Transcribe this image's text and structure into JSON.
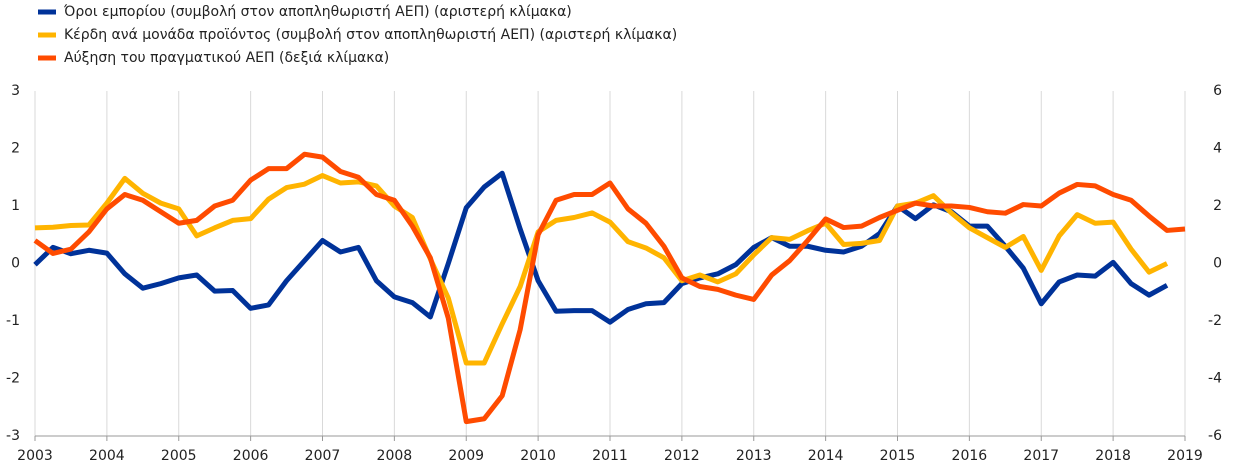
{
  "chart_data": {
    "type": "line",
    "x": [
      2003,
      2003.25,
      2003.5,
      2003.75,
      2004,
      2004.25,
      2004.5,
      2004.75,
      2005,
      2005.25,
      2005.5,
      2005.75,
      2006,
      2006.25,
      2006.5,
      2006.75,
      2007,
      2007.25,
      2007.5,
      2007.75,
      2008,
      2008.25,
      2008.5,
      2008.75,
      2009,
      2009.25,
      2009.5,
      2009.75,
      2010,
      2010.25,
      2010.5,
      2010.75,
      2011,
      2011.25,
      2011.5,
      2011.75,
      2012,
      2012.25,
      2012.5,
      2012.75,
      2013,
      2013.25,
      2013.5,
      2013.75,
      2014,
      2014.25,
      2014.5,
      2014.75,
      2015,
      2015.25,
      2015.5,
      2015.75,
      2016,
      2016.25,
      2016.5,
      2016.75,
      2017,
      2017.25,
      2017.5,
      2017.75,
      2018,
      2018.25,
      2018.5,
      2018.75,
      2019
    ],
    "series": [
      {
        "name": "Όροι εμπορίου (συμβολή στον αποπληθωριστή ΑΕΠ) (αριστερή κλίμακα)",
        "color": "#003299",
        "values": [
          -0.02,
          0.28,
          0.17,
          0.23,
          0.18,
          -0.18,
          -0.43,
          -0.35,
          -0.25,
          -0.2,
          -0.48,
          -0.47,
          -0.78,
          -0.72,
          -0.3,
          0.05,
          0.4,
          0.2,
          0.28,
          -0.3,
          -0.58,
          -0.68,
          -0.93,
          0.0,
          0.97,
          1.33,
          1.57,
          0.6,
          -0.3,
          -0.83,
          -0.82,
          -0.82,
          -1.02,
          -0.8,
          -0.7,
          -0.68,
          -0.35,
          -0.25,
          -0.18,
          -0.02,
          0.28,
          0.45,
          0.3,
          0.3,
          0.23,
          0.2,
          0.3,
          0.52,
          1.0,
          0.78,
          1.02,
          0.9,
          0.65,
          0.65,
          0.3,
          -0.08,
          -0.7,
          -0.32,
          -0.2,
          -0.22,
          0.02,
          -0.35,
          -0.55,
          -0.38,
          null
        ]
      },
      {
        "name": "Κέρδη ανά μονάδα προϊόντος (συμβολή στον αποπληθωριστή ΑΕΠ) (αριστερή κλίμακα)",
        "color": "#FFB400",
        "values": [
          0.62,
          0.63,
          0.66,
          0.67,
          1.05,
          1.48,
          1.22,
          1.05,
          0.95,
          0.48,
          0.62,
          0.75,
          0.78,
          1.12,
          1.32,
          1.38,
          1.53,
          1.4,
          1.42,
          1.35,
          1.0,
          0.8,
          0.08,
          -0.6,
          -1.73,
          -1.73,
          -1.05,
          -0.4,
          0.55,
          0.75,
          0.8,
          0.88,
          0.72,
          0.38,
          0.27,
          0.1,
          -0.3,
          -0.2,
          -0.32,
          -0.18,
          0.15,
          0.45,
          0.42,
          0.57,
          0.7,
          0.33,
          0.35,
          0.4,
          1.0,
          1.05,
          1.18,
          0.88,
          0.62,
          0.45,
          0.28,
          0.47,
          -0.12,
          0.48,
          0.85,
          0.7,
          0.72,
          0.25,
          -0.15,
          0.0,
          null
        ]
      },
      {
        "name": "Αύξηση του πραγματικού ΑΕΠ (δεξιά κλίμακα)",
        "color": "#FF4B00",
        "axis": "y2",
        "values": [
          0.8,
          0.35,
          0.5,
          1.1,
          1.9,
          2.4,
          2.2,
          1.8,
          1.4,
          1.5,
          2.0,
          2.2,
          2.9,
          3.3,
          3.3,
          3.8,
          3.7,
          3.2,
          3.0,
          2.4,
          2.2,
          1.3,
          0.2,
          -1.9,
          -5.5,
          -5.4,
          -4.6,
          -2.3,
          1.0,
          2.2,
          2.4,
          2.4,
          2.8,
          1.9,
          1.4,
          0.6,
          -0.5,
          -0.8,
          -0.9,
          -1.1,
          -1.25,
          -0.4,
          0.1,
          0.8,
          1.55,
          1.25,
          1.3,
          1.6,
          1.85,
          2.1,
          2.0,
          2.0,
          1.95,
          1.8,
          1.75,
          2.05,
          2.0,
          2.45,
          2.75,
          2.7,
          2.4,
          2.2,
          1.65,
          1.15,
          1.2
        ]
      }
    ],
    "xlim": [
      2003,
      2019
    ],
    "xticks": [
      2003,
      2004,
      2005,
      2006,
      2007,
      2008,
      2009,
      2010,
      2011,
      2012,
      2013,
      2014,
      2015,
      2016,
      2017,
      2018,
      2019
    ],
    "ylim": [
      -3,
      3
    ],
    "yticks": [
      -3,
      -2,
      -1,
      0,
      1,
      2,
      3
    ],
    "y2lim": [
      -6,
      6
    ],
    "y2ticks": [
      -6,
      -4,
      -2,
      0,
      2,
      4,
      6
    ],
    "grid": true
  }
}
